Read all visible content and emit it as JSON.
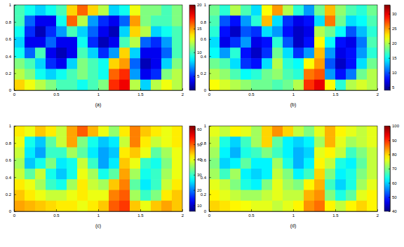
{
  "chart_data": [
    {
      "type": "heatmap",
      "caption": "(a)",
      "xlim": [
        0,
        2
      ],
      "ylim": [
        0,
        1
      ],
      "xticks": [
        0,
        0.5,
        1,
        1.5,
        2
      ],
      "yticks": [
        0,
        0.2,
        0.4,
        0.6,
        0.8,
        1
      ],
      "color_range": [
        2,
        20
      ],
      "colorbar_ticks": [
        5,
        10,
        15,
        20
      ],
      "cells": [
        [
          10,
          9,
          8,
          9,
          10,
          14,
          16,
          14,
          12,
          8,
          9,
          13,
          11,
          11,
          10,
          11
        ],
        [
          10,
          6,
          4,
          4,
          9,
          16,
          12,
          7,
          5,
          4,
          6,
          15,
          11,
          10,
          10,
          11
        ],
        [
          9,
          5,
          3,
          5,
          7,
          10,
          8,
          6,
          4,
          3,
          8,
          14,
          12,
          8,
          9,
          10
        ],
        [
          8,
          4,
          4,
          6,
          4,
          4,
          9,
          5,
          3,
          4,
          10,
          12,
          6,
          5,
          7,
          10
        ],
        [
          9,
          6,
          10,
          4,
          3,
          4,
          10,
          8,
          5,
          7,
          14,
          8,
          4,
          4,
          6,
          10
        ],
        [
          11,
          10,
          8,
          5,
          4,
          8,
          11,
          10,
          9,
          14,
          15,
          6,
          3,
          4,
          8,
          11
        ],
        [
          12,
          11,
          9,
          8,
          9,
          10,
          11,
          10,
          9,
          16,
          17,
          7,
          4,
          5,
          11,
          12
        ],
        [
          14,
          13,
          12,
          11,
          10,
          10,
          9,
          10,
          11,
          17,
          18,
          12,
          8,
          12,
          13,
          12
        ]
      ]
    },
    {
      "type": "heatmap",
      "caption": "(b)",
      "xlim": [
        0,
        2
      ],
      "ylim": [
        0,
        1
      ],
      "xticks": [
        0,
        0.5,
        1,
        1.5,
        2
      ],
      "yticks": [
        0,
        0.2,
        0.4,
        0.6,
        0.8,
        1
      ],
      "color_range": [
        4,
        33
      ],
      "colorbar_ticks": [
        5,
        10,
        15,
        20,
        25,
        30
      ],
      "cells": [
        [
          18,
          16,
          20,
          17,
          14,
          22,
          25,
          20,
          16,
          12,
          18,
          24,
          19,
          17,
          16,
          18
        ],
        [
          17,
          10,
          8,
          12,
          16,
          24,
          14,
          9,
          7,
          8,
          14,
          26,
          18,
          14,
          15,
          17
        ],
        [
          16,
          8,
          6,
          10,
          9,
          14,
          12,
          8,
          6,
          7,
          20,
          18,
          15,
          10,
          13,
          16
        ],
        [
          14,
          7,
          9,
          12,
          7,
          8,
          16,
          10,
          6,
          8,
          22,
          15,
          8,
          7,
          11,
          17
        ],
        [
          15,
          12,
          16,
          8,
          6,
          9,
          18,
          14,
          9,
          12,
          24,
          12,
          7,
          8,
          12,
          16
        ],
        [
          18,
          17,
          14,
          9,
          8,
          14,
          20,
          16,
          15,
          22,
          25,
          10,
          6,
          8,
          14,
          18
        ],
        [
          20,
          19,
          17,
          15,
          16,
          18,
          19,
          17,
          16,
          26,
          27,
          12,
          8,
          11,
          18,
          20
        ],
        [
          22,
          21,
          20,
          19,
          18,
          18,
          17,
          18,
          20,
          28,
          30,
          22,
          16,
          20,
          21,
          20
        ]
      ]
    },
    {
      "type": "heatmap",
      "caption": "(c)",
      "xlim": [
        0,
        2
      ],
      "ylim": [
        0,
        1
      ],
      "xticks": [
        0,
        0.5,
        1,
        1.5,
        2
      ],
      "yticks": [
        0,
        0.2,
        0.4,
        0.6,
        0.8,
        1
      ],
      "color_range": [
        6,
        62
      ],
      "colorbar_ticks": [
        10,
        20,
        30,
        40,
        50,
        60
      ],
      "cells": [
        [
          42,
          40,
          44,
          42,
          38,
          46,
          50,
          45,
          40,
          35,
          42,
          48,
          44,
          42,
          40,
          42
        ],
        [
          40,
          28,
          24,
          32,
          38,
          46,
          34,
          28,
          24,
          26,
          38,
          48,
          42,
          38,
          40,
          42
        ],
        [
          38,
          26,
          22,
          30,
          30,
          36,
          32,
          26,
          22,
          24,
          42,
          44,
          40,
          32,
          36,
          40
        ],
        [
          36,
          24,
          28,
          34,
          26,
          28,
          38,
          30,
          22,
          26,
          44,
          40,
          30,
          28,
          34,
          40
        ],
        [
          38,
          32,
          38,
          28,
          24,
          28,
          40,
          36,
          28,
          32,
          46,
          36,
          28,
          30,
          36,
          40
        ],
        [
          42,
          40,
          36,
          30,
          28,
          36,
          42,
          38,
          36,
          44,
          48,
          32,
          26,
          30,
          38,
          42
        ],
        [
          44,
          42,
          40,
          38,
          38,
          40,
          42,
          40,
          40,
          48,
          50,
          36,
          30,
          34,
          42,
          44
        ],
        [
          46,
          45,
          44,
          43,
          42,
          42,
          40,
          42,
          44,
          50,
          52,
          44,
          40,
          44,
          46,
          44
        ]
      ]
    },
    {
      "type": "heatmap",
      "caption": "(d)",
      "xlim": [
        0,
        2
      ],
      "ylim": [
        0,
        1
      ],
      "xticks": [
        0,
        0.5,
        1,
        1.5,
        2
      ],
      "yticks": [
        0,
        0.2,
        0.4,
        0.6,
        0.8,
        1
      ],
      "color_range": [
        40,
        100
      ],
      "colorbar_ticks": [
        40,
        50,
        60,
        70,
        80,
        90,
        100
      ],
      "cells": [
        [
          76,
          74,
          78,
          76,
          72,
          80,
          84,
          80,
          74,
          70,
          76,
          82,
          78,
          76,
          74,
          76
        ],
        [
          74,
          64,
          60,
          66,
          72,
          80,
          68,
          62,
          60,
          62,
          72,
          82,
          76,
          72,
          74,
          76
        ],
        [
          72,
          62,
          58,
          64,
          66,
          70,
          66,
          62,
          58,
          60,
          76,
          78,
          74,
          66,
          70,
          74
        ],
        [
          70,
          60,
          62,
          68,
          62,
          62,
          72,
          64,
          58,
          62,
          78,
          74,
          64,
          62,
          68,
          74
        ],
        [
          72,
          66,
          72,
          62,
          60,
          62,
          74,
          70,
          62,
          66,
          80,
          70,
          62,
          64,
          70,
          74
        ],
        [
          76,
          74,
          70,
          64,
          62,
          70,
          76,
          72,
          70,
          78,
          82,
          66,
          60,
          64,
          72,
          76
        ],
        [
          78,
          76,
          74,
          72,
          72,
          74,
          76,
          74,
          74,
          82,
          84,
          70,
          64,
          68,
          76,
          78
        ],
        [
          80,
          79,
          78,
          77,
          76,
          76,
          74,
          76,
          78,
          84,
          86,
          78,
          74,
          78,
          80,
          78
        ]
      ]
    }
  ]
}
